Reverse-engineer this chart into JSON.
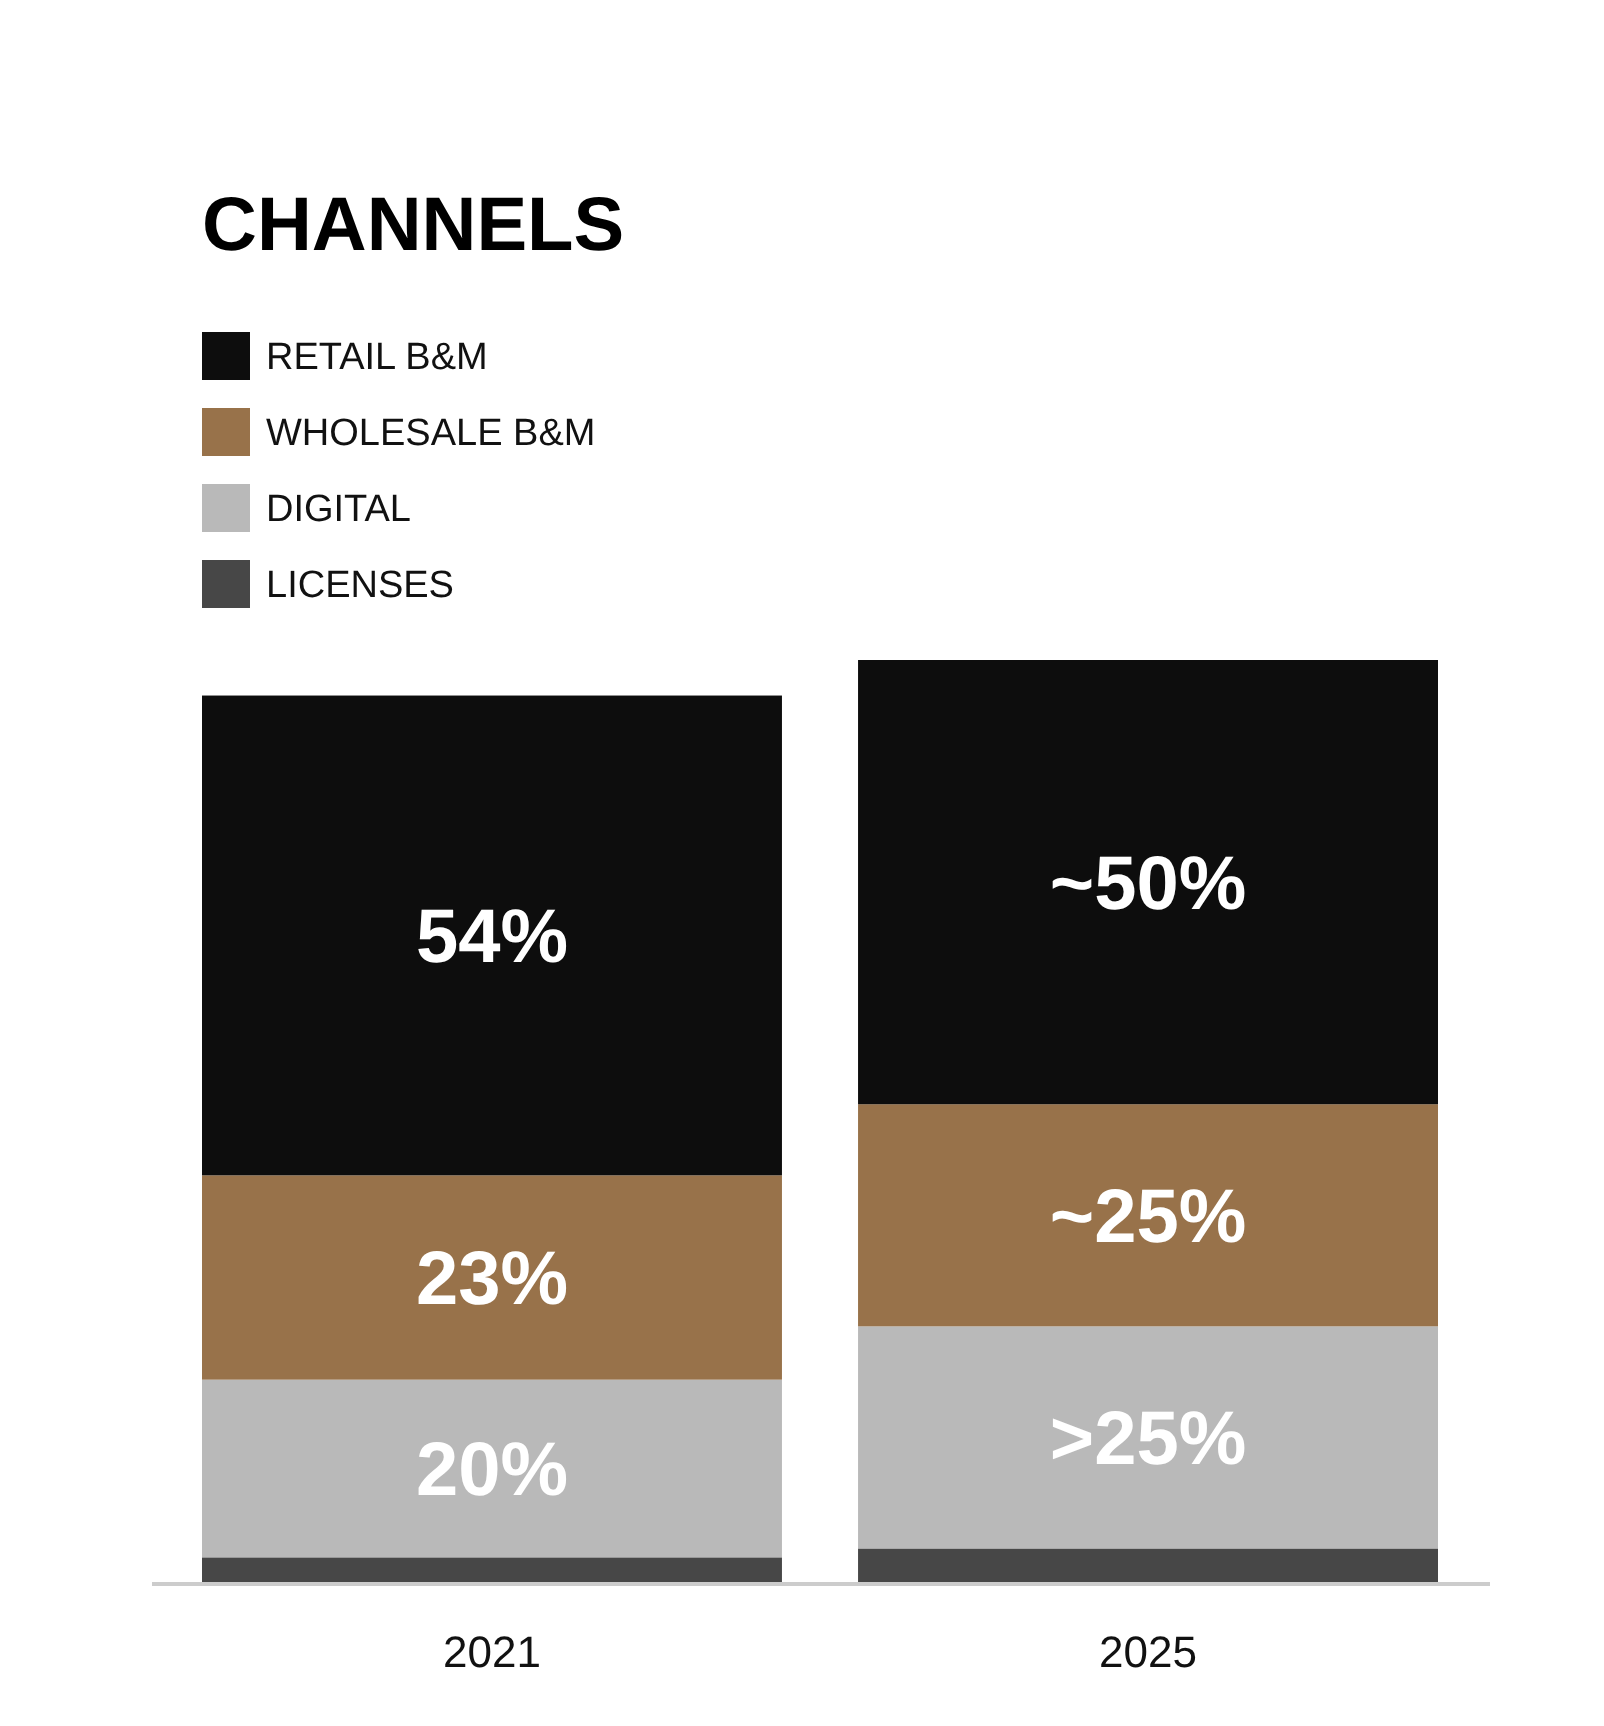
{
  "chart_data": {
    "type": "bar",
    "title": "CHANNELS",
    "categories": [
      "2021",
      "2025"
    ],
    "stacked": true,
    "legend": "top left",
    "series": [
      {
        "name": "LICENSES",
        "color": "#474747",
        "values": [
          3,
          4
        ],
        "value_labels": [
          null,
          null
        ]
      },
      {
        "name": "DIGITAL",
        "color": "#b9b9b9",
        "values": [
          20,
          25
        ],
        "value_labels": [
          "20%",
          ">25%"
        ]
      },
      {
        "name": "WHOLESALE B&M",
        "color": "#98724a",
        "values": [
          23,
          25
        ],
        "value_labels": [
          "23%",
          "~25%"
        ]
      },
      {
        "name": "RETAIL B&M",
        "color": "#0d0d0d",
        "values": [
          54,
          50
        ],
        "value_labels": [
          "54%",
          "~50%"
        ]
      }
    ]
  }
}
